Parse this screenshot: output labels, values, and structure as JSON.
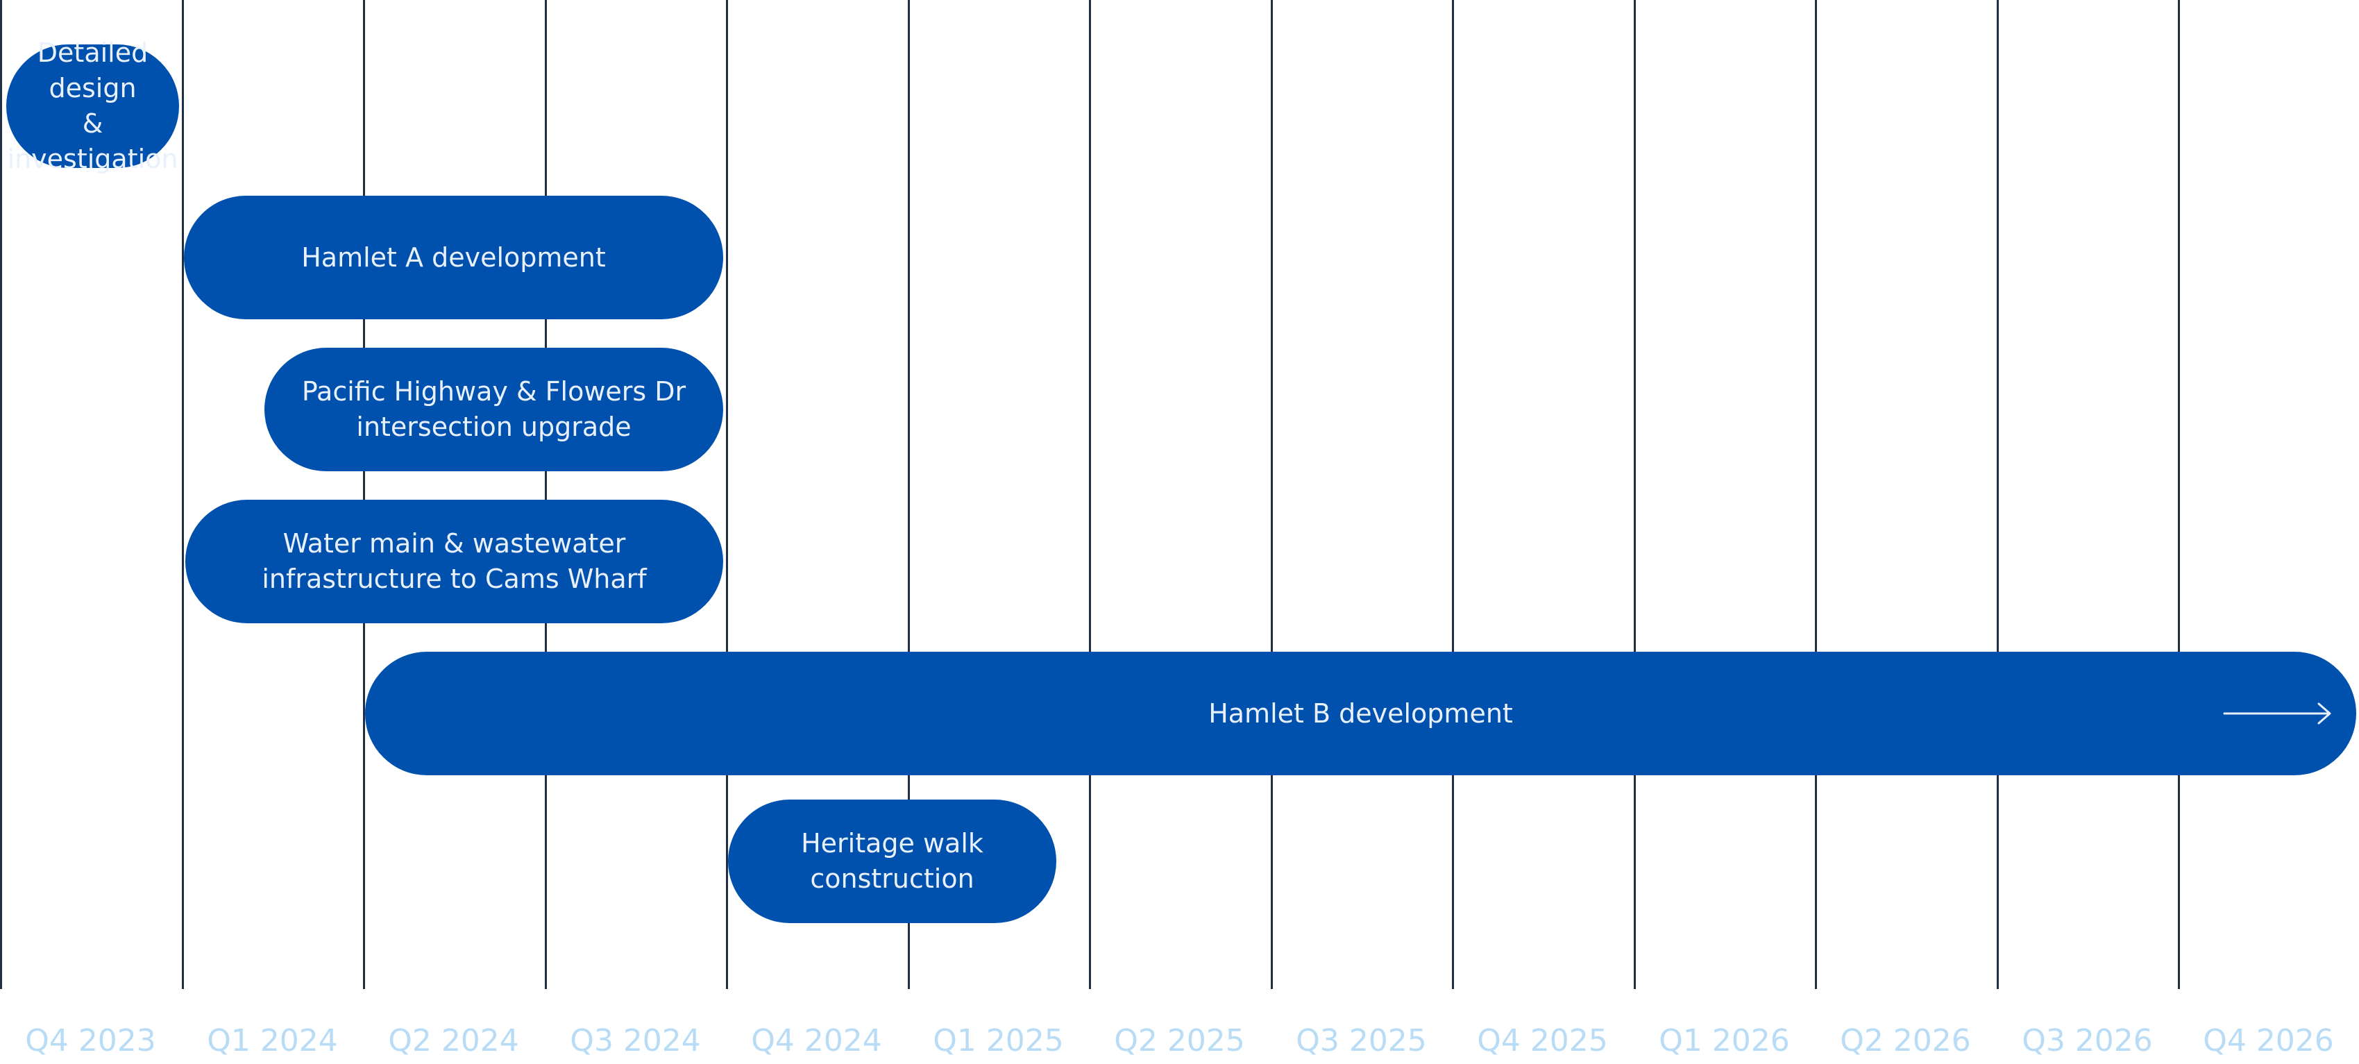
{
  "colors": {
    "bar": "#0050ae",
    "bar_text": "#e8f1fb",
    "gridline": "#1f2f44",
    "quarter_label": "#b9dcf6",
    "background": "#ffffff"
  },
  "chart_data": {
    "type": "gantt",
    "title": "",
    "quarters": [
      "Q4 2023",
      "Q1 2024",
      "Q2 2024",
      "Q3 2024",
      "Q4 2024",
      "Q1 2025",
      "Q2 2025",
      "Q3 2025",
      "Q4 2025",
      "Q1 2026",
      "Q2 2026",
      "Q3 2026",
      "Q4 2026"
    ],
    "tasks": [
      {
        "label": "Detailed design\n& investigation",
        "start": "Q4 2023",
        "end": "Q4 2023",
        "continues": false
      },
      {
        "label": "Hamlet A development",
        "start": "Q1 2024",
        "end": "Q3 2024",
        "continues": false
      },
      {
        "label": "Pacific Highway & Flowers Dr\nintersection upgrade",
        "start": "Q1 2024",
        "end": "Q3 2024",
        "continues": false
      },
      {
        "label": "Water main & wastewater\ninfrastructure to Cams Wharf",
        "start": "Q1 2024",
        "end": "Q3 2024",
        "continues": false
      },
      {
        "label": "Hamlet B development",
        "start": "Q2 2024",
        "end": "Q4 2026",
        "continues": true
      },
      {
        "label": "Heritage walk construction",
        "start": "Q4 2024",
        "end": "Q1 2025",
        "continues": false
      }
    ]
  }
}
